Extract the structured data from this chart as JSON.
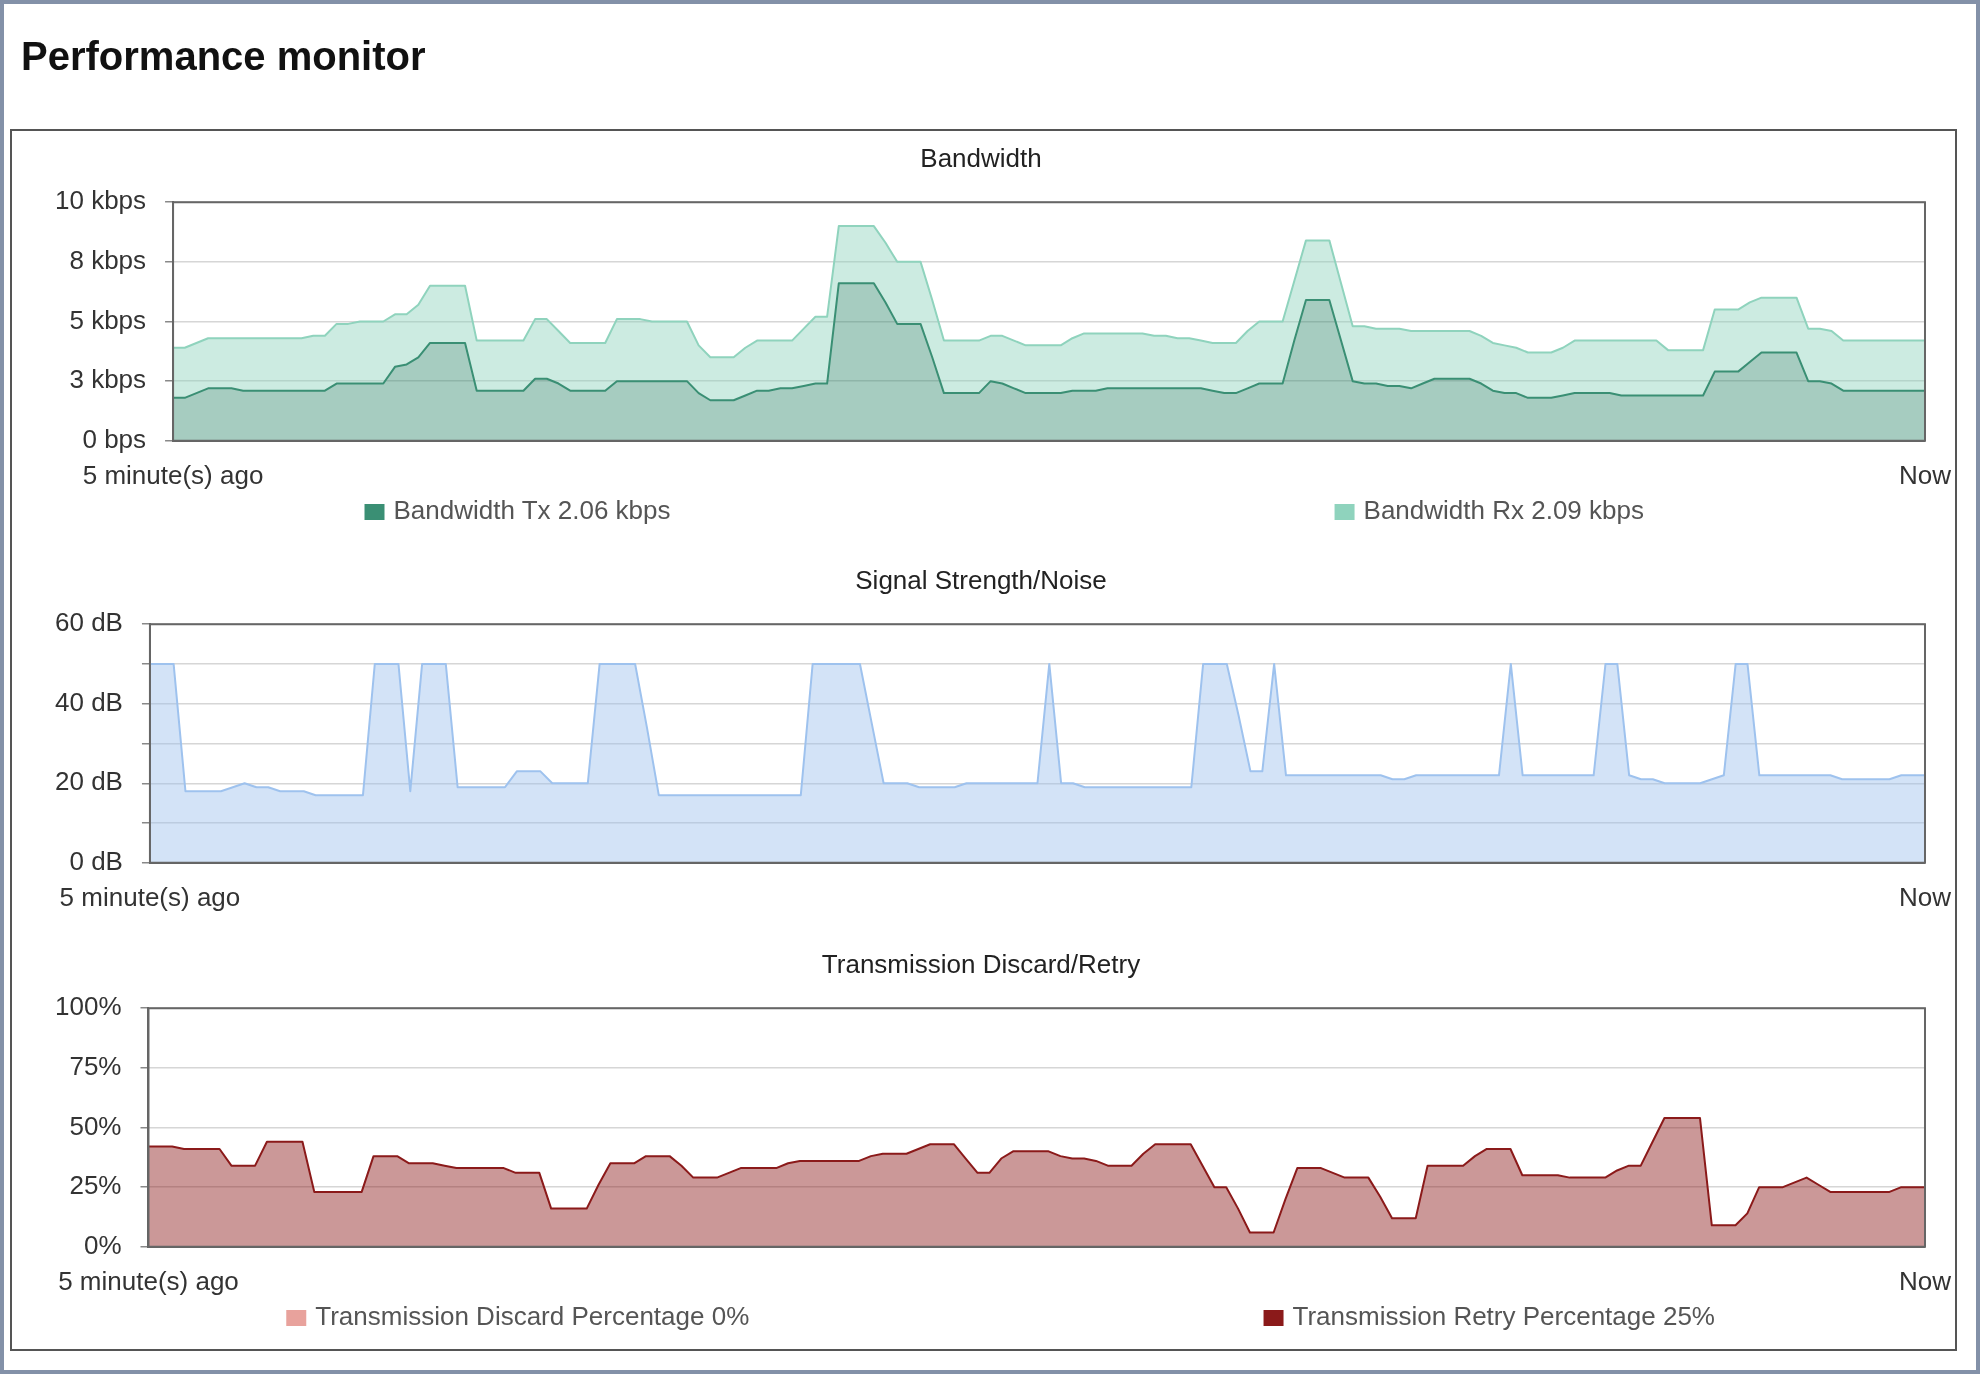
{
  "chart_data": [
    {
      "type": "other",
      "title": "Performance monitor"
    },
    {
      "type": "area",
      "title": "Bandwidth",
      "stacked": true,
      "grid": "y",
      "legend": "bottom",
      "categories": [
        "5 minute(s) ago",
        null,
        null,
        null,
        null,
        null,
        null,
        null,
        null,
        null,
        null,
        null,
        null,
        null,
        null,
        null,
        null,
        null,
        null,
        null,
        null,
        null,
        null,
        null,
        null,
        null,
        null,
        null,
        null,
        null,
        null,
        null,
        null,
        null,
        null,
        null,
        null,
        null,
        null,
        null,
        null,
        null,
        null,
        null,
        null,
        null,
        null,
        null,
        null,
        null,
        null,
        null,
        null,
        null,
        null,
        null,
        null,
        null,
        null,
        null,
        null,
        null,
        null,
        null,
        null,
        null,
        null,
        null,
        null,
        null,
        null,
        null,
        null,
        null,
        null,
        null,
        null,
        null,
        null,
        null,
        null,
        null,
        null,
        null,
        null,
        null,
        null,
        null,
        null,
        null,
        null,
        null,
        null,
        null,
        null,
        null,
        null,
        null,
        null,
        null,
        null,
        null,
        null,
        null,
        null,
        null,
        null,
        null,
        null,
        null,
        null,
        null,
        null,
        null,
        null,
        null,
        null,
        null,
        null,
        null,
        null,
        null,
        null,
        null,
        null,
        null,
        null,
        null,
        null,
        null,
        null,
        null,
        null,
        null,
        null,
        null,
        null,
        null,
        null,
        null,
        null,
        null,
        null,
        null,
        null,
        null,
        null,
        null,
        null,
        null,
        "Now"
      ],
      "ylim": [
        0,
        10
      ],
      "yticks": [
        {
          "value": 0,
          "label": "0 bps"
        },
        {
          "value": 2.5,
          "label": "3 kbps"
        },
        {
          "value": 5,
          "label": "5 kbps"
        },
        {
          "value": 7.5,
          "label": "8 kbps"
        },
        {
          "value": 10,
          "label": "10 kbps"
        }
      ],
      "series": [
        {
          "name": "Bandwidth Tx 2.06 kbps",
          "color": "#3a8f74",
          "values": [
            1.8,
            1.8,
            2.0,
            2.2,
            2.2,
            2.2,
            2.1,
            2.1,
            2.1,
            2.1,
            2.1,
            2.1,
            2.1,
            2.1,
            2.4,
            2.4,
            2.4,
            2.4,
            2.4,
            3.1,
            3.2,
            3.5,
            4.1,
            4.1,
            4.1,
            4.1,
            2.1,
            2.1,
            2.1,
            2.1,
            2.1,
            2.6,
            2.6,
            2.4,
            2.1,
            2.1,
            2.1,
            2.1,
            2.5,
            2.5,
            2.5,
            2.5,
            2.5,
            2.5,
            2.5,
            2.0,
            1.7,
            1.7,
            1.7,
            1.9,
            2.1,
            2.1,
            2.2,
            2.2,
            2.3,
            2.4,
            2.4,
            6.6,
            6.6,
            6.6,
            6.6,
            5.8,
            4.9,
            4.9,
            4.9,
            3.5,
            2.0,
            2.0,
            2.0,
            2.0,
            2.5,
            2.4,
            2.2,
            2.0,
            2.0,
            2.0,
            2.0,
            2.1,
            2.1,
            2.1,
            2.2,
            2.2,
            2.2,
            2.2,
            2.2,
            2.2,
            2.2,
            2.2,
            2.2,
            2.1,
            2.0,
            2.0,
            2.2,
            2.4,
            2.4,
            2.4,
            4.2,
            5.9,
            5.9,
            5.9,
            4.2,
            2.5,
            2.4,
            2.4,
            2.3,
            2.3,
            2.2,
            2.4,
            2.6,
            2.6,
            2.6,
            2.6,
            2.4,
            2.1,
            2.0,
            2.0,
            1.8,
            1.8,
            1.8,
            1.9,
            2.0,
            2.0,
            2.0,
            2.0,
            1.9,
            1.9,
            1.9,
            1.9,
            1.9,
            1.9,
            1.9,
            1.9,
            2.9,
            2.9,
            2.9,
            3.3,
            3.7,
            3.7,
            3.7,
            3.7,
            2.5,
            2.5,
            2.4,
            2.1,
            2.1,
            2.1,
            2.1,
            2.1,
            2.1,
            2.1,
            2.1
          ]
        },
        {
          "name": "Bandwidth Rx 2.09 kbps",
          "color": "#8fd3bd",
          "values": [
            2.1,
            2.1,
            2.1,
            2.1,
            2.1,
            2.1,
            2.2,
            2.2,
            2.2,
            2.2,
            2.2,
            2.2,
            2.3,
            2.3,
            2.5,
            2.5,
            2.6,
            2.6,
            2.6,
            2.2,
            2.1,
            2.2,
            2.4,
            2.4,
            2.4,
            2.4,
            2.1,
            2.1,
            2.1,
            2.1,
            2.1,
            2.5,
            2.5,
            2.2,
            2.0,
            2.0,
            2.0,
            2.0,
            2.6,
            2.6,
            2.6,
            2.5,
            2.5,
            2.5,
            2.5,
            2.0,
            1.8,
            1.8,
            1.8,
            2.0,
            2.1,
            2.1,
            2.0,
            2.0,
            2.4,
            2.8,
            2.8,
            2.4,
            2.4,
            2.4,
            2.4,
            2.5,
            2.6,
            2.6,
            2.6,
            2.4,
            2.2,
            2.2,
            2.2,
            2.2,
            1.9,
            2.0,
            2.0,
            2.0,
            2.0,
            2.0,
            2.0,
            2.2,
            2.4,
            2.4,
            2.3,
            2.3,
            2.3,
            2.3,
            2.2,
            2.2,
            2.1,
            2.1,
            2.0,
            2.0,
            2.1,
            2.1,
            2.4,
            2.6,
            2.6,
            2.6,
            2.5,
            2.5,
            2.5,
            2.5,
            2.4,
            2.3,
            2.4,
            2.3,
            2.4,
            2.4,
            2.4,
            2.2,
            2.0,
            2.0,
            2.0,
            2.0,
            2.0,
            2.0,
            2.0,
            1.9,
            1.9,
            1.9,
            1.9,
            2.0,
            2.2,
            2.2,
            2.2,
            2.2,
            2.3,
            2.3,
            2.3,
            2.3,
            1.9,
            1.9,
            1.9,
            1.9,
            2.6,
            2.6,
            2.6,
            2.5,
            2.3,
            2.3,
            2.3,
            2.3,
            2.2,
            2.2,
            2.2,
            2.1,
            2.1,
            2.1,
            2.1,
            2.1,
            2.1,
            2.1,
            2.1
          ]
        }
      ]
    },
    {
      "type": "area",
      "title": "Signal Strength/Noise",
      "grid": "y",
      "color": "#9ec2ee",
      "categories": [
        "5 minute(s) ago",
        null,
        null,
        null,
        null,
        null,
        null,
        null,
        null,
        null,
        null,
        null,
        null,
        null,
        null,
        null,
        null,
        null,
        null,
        null,
        null,
        null,
        null,
        null,
        null,
        null,
        null,
        null,
        null,
        null,
        null,
        null,
        null,
        null,
        null,
        null,
        null,
        null,
        null,
        null,
        null,
        null,
        null,
        null,
        null,
        null,
        null,
        null,
        null,
        null,
        null,
        null,
        null,
        null,
        null,
        null,
        null,
        null,
        null,
        null,
        null,
        null,
        null,
        null,
        null,
        null,
        null,
        null,
        null,
        null,
        null,
        null,
        null,
        null,
        null,
        null,
        null,
        null,
        null,
        null,
        null,
        null,
        null,
        null,
        null,
        null,
        null,
        null,
        null,
        null,
        null,
        null,
        null,
        null,
        null,
        null,
        null,
        null,
        null,
        null,
        null,
        null,
        null,
        null,
        null,
        null,
        null,
        null,
        null,
        null,
        null,
        null,
        null,
        null,
        null,
        null,
        null,
        null,
        null,
        null,
        null,
        null,
        null,
        null,
        null,
        null,
        null,
        null,
        null,
        null,
        null,
        null,
        null,
        null,
        null,
        null,
        null,
        null,
        null,
        null,
        null,
        null,
        null,
        null,
        null,
        null,
        null,
        null,
        null,
        null,
        "Now"
      ],
      "values": [
        50,
        50,
        50,
        18,
        18,
        18,
        18,
        19,
        20,
        19,
        19,
        18,
        18,
        18,
        17,
        17,
        17,
        17,
        17,
        50,
        50,
        50,
        18,
        50,
        50,
        50,
        19,
        19,
        19,
        19,
        19,
        23,
        23,
        23,
        20,
        20,
        20,
        20,
        50,
        50,
        50,
        50,
        34,
        17,
        17,
        17,
        17,
        17,
        17,
        17,
        17,
        17,
        17,
        17,
        17,
        17,
        50,
        50,
        50,
        50,
        50,
        35,
        20,
        20,
        20,
        19,
        19,
        19,
        19,
        20,
        20,
        20,
        20,
        20,
        20,
        20,
        50,
        20,
        20,
        19,
        19,
        19,
        19,
        19,
        19,
        19,
        19,
        19,
        19,
        50,
        50,
        50,
        37,
        23,
        23,
        50,
        22,
        22,
        22,
        22,
        22,
        22,
        22,
        22,
        22,
        21,
        21,
        22,
        22,
        22,
        22,
        22,
        22,
        22,
        22,
        50,
        22,
        22,
        22,
        22,
        22,
        22,
        22,
        50,
        50,
        22,
        21,
        21,
        20,
        20,
        20,
        20,
        21,
        22,
        50,
        50,
        22,
        22,
        22,
        22,
        22,
        22,
        22,
        21,
        21,
        21,
        21,
        21,
        22,
        22,
        22
      ],
      "ylim": [
        0,
        60
      ],
      "yticks": [
        {
          "value": 0,
          "label": "0 dB"
        },
        {
          "value": 10,
          "label": null
        },
        {
          "value": 20,
          "label": "20 dB"
        },
        {
          "value": 30,
          "label": null
        },
        {
          "value": 40,
          "label": "40 dB"
        },
        {
          "value": 50,
          "label": null
        },
        {
          "value": 60,
          "label": "60 dB"
        }
      ]
    },
    {
      "type": "area",
      "title": "Transmission Discard/Retry",
      "grid": "y",
      "legend": "bottom",
      "categories": [
        "5 minute(s) ago",
        null,
        null,
        null,
        null,
        null,
        null,
        null,
        null,
        null,
        null,
        null,
        null,
        null,
        null,
        null,
        null,
        null,
        null,
        null,
        null,
        null,
        null,
        null,
        null,
        null,
        null,
        null,
        null,
        null,
        null,
        null,
        null,
        null,
        null,
        null,
        null,
        null,
        null,
        null,
        null,
        null,
        null,
        null,
        null,
        null,
        null,
        null,
        null,
        null,
        null,
        null,
        null,
        null,
        null,
        null,
        null,
        null,
        null,
        null,
        null,
        null,
        null,
        null,
        null,
        null,
        null,
        null,
        null,
        null,
        null,
        null,
        null,
        null,
        null,
        null,
        null,
        null,
        null,
        null,
        null,
        null,
        null,
        null,
        null,
        null,
        null,
        null,
        null,
        null,
        null,
        null,
        null,
        null,
        null,
        null,
        null,
        null,
        null,
        null,
        null,
        null,
        null,
        null,
        null,
        null,
        null,
        null,
        null,
        null,
        null,
        null,
        null,
        null,
        null,
        null,
        null,
        null,
        null,
        null,
        null,
        null,
        null,
        null,
        null,
        null,
        null,
        null,
        null,
        null,
        null,
        null,
        null,
        null,
        null,
        null,
        null,
        null,
        null,
        null,
        null,
        null,
        null,
        null,
        null,
        null,
        null,
        null,
        null,
        null,
        "Now"
      ],
      "ylim": [
        0,
        100
      ],
      "yticks": [
        {
          "value": 0,
          "label": "0%"
        },
        {
          "value": 25,
          "label": "25%"
        },
        {
          "value": 50,
          "label": "50%"
        },
        {
          "value": 75,
          "label": "75%"
        },
        {
          "value": 100,
          "label": "100%"
        }
      ],
      "series": [
        {
          "name": "Transmission Discard Percentage 0%",
          "color": "#e8a29c",
          "values": [
            null,
            null,
            null,
            null,
            null,
            null,
            null,
            null,
            null,
            null,
            null,
            null,
            null,
            null,
            null,
            null,
            null,
            null,
            null,
            null,
            null,
            null,
            null,
            null,
            null,
            null,
            null,
            null,
            null,
            null,
            null,
            null,
            null,
            null,
            null,
            null,
            null,
            null,
            null,
            null,
            null,
            null,
            null,
            null,
            null,
            null,
            null,
            null,
            null,
            null,
            null,
            null,
            null,
            null,
            null,
            null,
            null,
            null,
            null,
            null,
            null,
            null,
            null,
            null,
            null,
            null,
            null,
            null,
            null,
            null,
            null,
            null,
            null,
            null,
            null,
            null,
            null,
            null,
            null,
            null,
            null,
            null,
            null,
            null,
            null,
            null,
            null,
            null,
            null,
            null,
            null,
            null,
            null,
            null,
            null,
            null,
            null,
            null,
            null,
            null,
            null,
            null,
            null,
            null,
            null,
            null,
            null,
            null,
            null,
            null,
            null,
            null,
            null,
            null,
            null,
            null,
            null,
            null,
            null,
            null,
            null,
            null,
            null,
            null,
            null,
            null,
            null,
            null,
            null,
            null,
            null,
            null,
            null,
            null,
            null,
            null,
            null,
            null,
            null,
            null,
            null,
            null,
            null,
            null,
            null,
            null,
            null,
            null,
            null,
            null,
            null
          ]
        },
        {
          "name": "Transmission Retry Percentage 25%",
          "color": "#8b1a1a",
          "values": [
            42,
            42,
            42,
            41,
            41,
            41,
            41,
            34,
            34,
            34,
            44,
            44,
            44,
            44,
            23,
            23,
            23,
            23,
            23,
            38,
            38,
            38,
            35,
            35,
            35,
            34,
            33,
            33,
            33,
            33,
            33,
            31,
            31,
            31,
            16,
            16,
            16,
            16,
            26,
            35,
            35,
            35,
            38,
            38,
            38,
            34,
            29,
            29,
            29,
            31,
            33,
            33,
            33,
            33,
            35,
            36,
            36,
            36,
            36,
            36,
            36,
            38,
            39,
            39,
            39,
            41,
            43,
            43,
            43,
            37,
            31,
            31,
            37,
            40,
            40,
            40,
            40,
            38,
            37,
            37,
            36,
            34,
            34,
            34,
            39,
            43,
            43,
            43,
            43,
            34,
            25,
            25,
            16,
            6,
            6,
            6,
            20,
            33,
            33,
            33,
            31,
            29,
            29,
            29,
            21,
            12,
            12,
            12,
            34,
            34,
            34,
            34,
            38,
            41,
            41,
            41,
            30,
            30,
            30,
            30,
            29,
            29,
            29,
            29,
            32,
            34,
            34,
            44,
            54,
            54,
            54,
            54,
            9,
            9,
            9,
            14,
            25,
            25,
            25,
            27,
            29,
            26,
            23,
            23,
            23,
            23,
            23,
            23,
            25,
            25,
            25
          ]
        }
      ]
    }
  ]
}
